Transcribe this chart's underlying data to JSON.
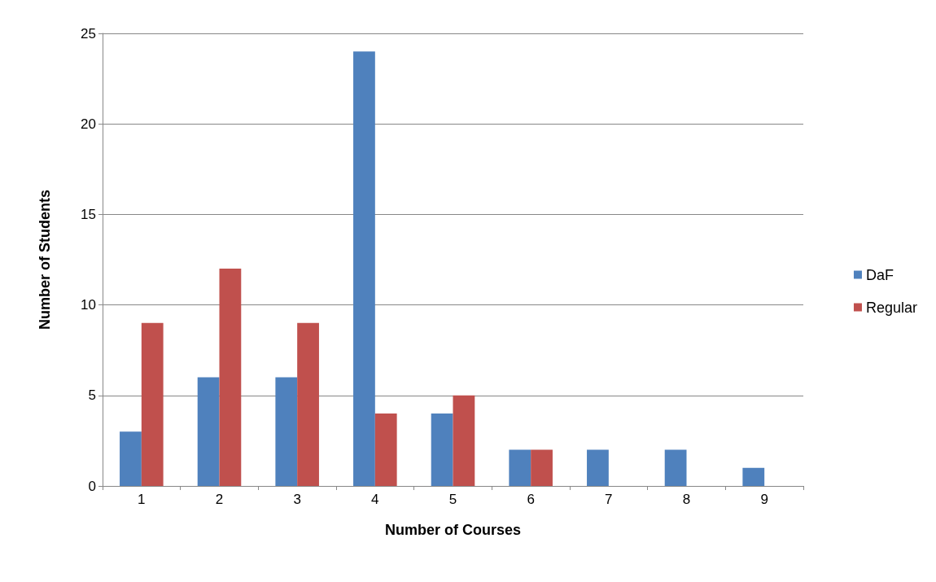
{
  "chart_data": {
    "type": "bar",
    "xlabel": "Number of Courses",
    "ylabel": "Number of Students",
    "categories": [
      "1",
      "2",
      "3",
      "4",
      "5",
      "6",
      "7",
      "8",
      "9"
    ],
    "series": [
      {
        "name": "DaF",
        "color": "#4f81bd",
        "values": [
          3,
          6,
          6,
          24,
          4,
          2,
          2,
          2,
          1
        ]
      },
      {
        "name": "Regular",
        "color": "#c0504d",
        "values": [
          9,
          12,
          9,
          4,
          5,
          2,
          0,
          0,
          0
        ]
      }
    ],
    "ylim": [
      0,
      25
    ],
    "yticks": [
      0,
      5,
      10,
      15,
      20,
      25
    ],
    "grid": "y",
    "legend": "right"
  }
}
